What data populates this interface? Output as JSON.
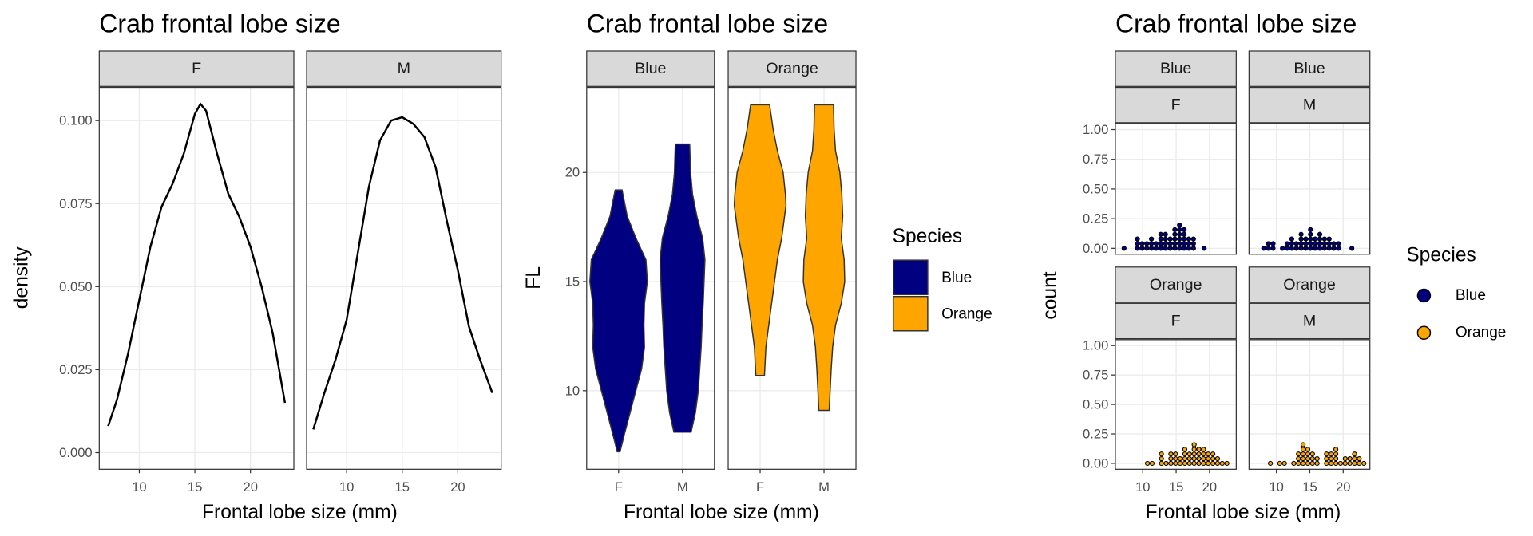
{
  "chart_data": [
    {
      "type": "line",
      "title": "Crab frontal lobe size",
      "x_label": "Frontal lobe size (mm)",
      "y_label": "density",
      "color": "#000000",
      "grid": true,
      "xlim": [
        6.4,
        23.9
      ],
      "xticks": [
        10,
        15,
        20
      ],
      "ylim": [
        -0.005,
        0.11
      ],
      "yticks": [
        {
          "value": 0,
          "label": "0.000"
        },
        0.025,
        {
          "value": 0.05,
          "label": "0.050"
        },
        0.075,
        {
          "value": 0.1,
          "label": "0.100"
        }
      ],
      "series": [
        {
          "name": "F",
          "x": [
            7.2,
            8,
            9,
            10,
            11,
            12,
            13,
            14,
            15,
            15.5,
            16,
            17,
            18,
            19,
            20,
            21,
            22,
            23.1
          ],
          "values": [
            0.008,
            0.016,
            0.03,
            0.046,
            0.062,
            0.074,
            0.081,
            0.09,
            0.102,
            0.105,
            0.103,
            0.09,
            0.078,
            0.071,
            0.062,
            0.05,
            0.036,
            0.015
          ]
        },
        {
          "name": "M",
          "x": [
            7,
            8,
            9,
            10,
            11,
            12,
            13,
            14,
            15,
            16,
            17,
            18,
            19,
            20,
            21,
            22,
            23.1
          ],
          "values": [
            0.007,
            0.018,
            0.028,
            0.04,
            0.06,
            0.08,
            0.094,
            0.1,
            0.101,
            0.099,
            0.095,
            0.086,
            0.07,
            0.055,
            0.038,
            0.028,
            0.018
          ]
        }
      ]
    },
    {
      "type": "violin",
      "title": "Crab frontal lobe size",
      "x_label": "Frontal lobe size (mm)",
      "y_label": "FL",
      "legend_title": "Species",
      "grid": true,
      "ylim": [
        6.4,
        23.9
      ],
      "yticks": [
        10,
        15,
        20
      ],
      "series": [
        {
          "name": "Blue",
          "color": "#000080",
          "violins": [
            {
              "category": "F",
              "y": [
                7.2,
                8,
                9,
                10,
                11,
                12,
                13,
                14,
                15,
                16,
                17,
                18,
                19.2
              ],
              "density": [
                0.05,
                0.2,
                0.4,
                0.6,
                0.8,
                0.9,
                0.88,
                0.9,
                1.0,
                0.95,
                0.6,
                0.3,
                0.12
              ]
            },
            {
              "category": "M",
              "y": [
                8.1,
                9,
                10,
                11,
                12,
                13,
                14,
                15,
                16,
                17,
                18,
                19,
                20,
                21.3
              ],
              "density": [
                0.3,
                0.45,
                0.55,
                0.6,
                0.65,
                0.68,
                0.72,
                0.75,
                0.78,
                0.7,
                0.5,
                0.35,
                0.28,
                0.25
              ]
            }
          ]
        },
        {
          "name": "Orange",
          "color": "#FFA500",
          "violins": [
            {
              "category": "F",
              "y": [
                10.7,
                12,
                13,
                14,
                15,
                16,
                17,
                18.5,
                19,
                20,
                21,
                22,
                23.1
              ],
              "density": [
                0.15,
                0.2,
                0.3,
                0.4,
                0.5,
                0.6,
                0.75,
                0.9,
                0.88,
                0.8,
                0.6,
                0.45,
                0.33
              ]
            },
            {
              "category": "M",
              "y": [
                9.1,
                11,
                12,
                13,
                14,
                15,
                16,
                17,
                18,
                19,
                20,
                21,
                22,
                23.1
              ],
              "density": [
                0.18,
                0.25,
                0.3,
                0.4,
                0.6,
                0.72,
                0.7,
                0.6,
                0.65,
                0.62,
                0.55,
                0.4,
                0.35,
                0.33
              ]
            }
          ]
        }
      ]
    },
    {
      "type": "dotplot",
      "title": "Crab frontal lobe size",
      "x_label": "Frontal lobe size (mm)",
      "y_label": "count",
      "legend_title": "Species",
      "grid": true,
      "xlim": [
        5.9,
        24.0
      ],
      "xticks": [
        10,
        15,
        20
      ],
      "ylim": [
        -0.05,
        1.05
      ],
      "yticks": [
        {
          "value": 0,
          "label": "0.00"
        },
        0.25,
        {
          "value": 0.5,
          "label": "0.50"
        },
        0.75,
        {
          "value": 1,
          "label": "1.00"
        }
      ],
      "series": [
        {
          "name": "Blue",
          "color": "#000080",
          "facets": [
            {
              "label": "F",
              "bins": [
                7.2,
                9.2,
                9.9,
                10.6,
                11.3,
                12.0,
                12.7,
                13.4,
                14.1,
                14.8,
                15.5,
                16.2,
                16.9,
                17.6,
                19.2
              ],
              "counts": [
                1,
                3,
                2,
                2,
                3,
                2,
                4,
                4,
                3,
                5,
                6,
                5,
                3,
                3,
                1
              ]
            },
            {
              "label": "M",
              "bins": [
                8.1,
                8.8,
                9.5,
                10.9,
                11.6,
                12.3,
                13.0,
                13.7,
                14.4,
                15.1,
                15.8,
                16.5,
                17.2,
                17.9,
                18.6,
                19.3,
                21.3
              ],
              "counts": [
                1,
                2,
                2,
                1,
                2,
                3,
                2,
                4,
                3,
                5,
                3,
                4,
                3,
                3,
                2,
                2,
                1
              ]
            }
          ]
        },
        {
          "name": "Orange",
          "color": "#FFA500",
          "facets": [
            {
              "label": "F",
              "bins": [
                10.7,
                11.4,
                12.8,
                13.5,
                14.2,
                14.9,
                15.6,
                16.3,
                17.0,
                17.7,
                18.4,
                19.1,
                19.8,
                20.5,
                21.2,
                21.9,
                22.6
              ],
              "counts": [
                1,
                1,
                3,
                1,
                3,
                3,
                2,
                4,
                3,
                5,
                4,
                4,
                3,
                3,
                2,
                1,
                1
              ]
            },
            {
              "label": "M",
              "bins": [
                9.1,
                10.5,
                11.2,
                12.6,
                13.3,
                14.0,
                14.7,
                15.4,
                16.1,
                17.5,
                18.2,
                18.9,
                19.6,
                20.3,
                21.0,
                21.7,
                22.4,
                23.1
              ],
              "counts": [
                1,
                1,
                1,
                1,
                3,
                5,
                4,
                3,
                2,
                3,
                3,
                4,
                1,
                2,
                2,
                3,
                2,
                1
              ]
            }
          ]
        }
      ]
    }
  ]
}
